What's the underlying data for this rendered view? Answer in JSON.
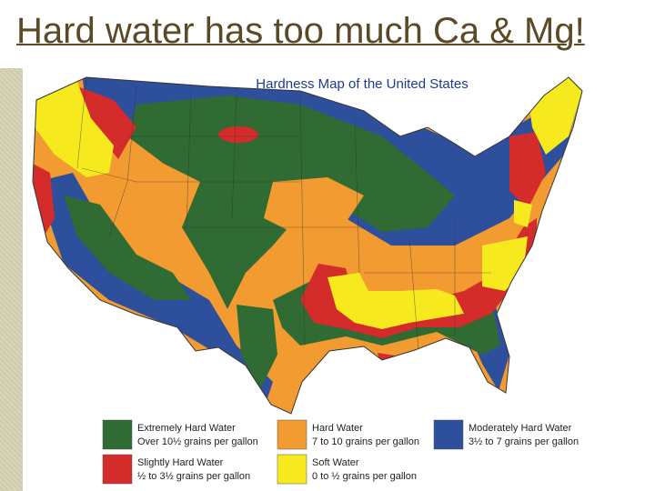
{
  "title": "Hard water has too much Ca & Mg!",
  "map": {
    "title": "Hardness Map of the United States",
    "legend": [
      {
        "label": "Extremely Hard Water",
        "range": "Over 10½ grains per gallon",
        "color": "#2f6b32"
      },
      {
        "label": "Hard Water",
        "range": "7 to 10 grains per gallon",
        "color": "#f29b30"
      },
      {
        "label": "Moderately Hard Water",
        "range": "3½ to 7 grains per gallon",
        "color": "#2e4f9c"
      },
      {
        "label": "Slightly Hard Water",
        "range": "½ to 3½ grains per gallon",
        "color": "#d42b2b"
      },
      {
        "label": "Soft Water",
        "range": "0 to ½ grains per gallon",
        "color": "#f6ea1e"
      }
    ]
  }
}
